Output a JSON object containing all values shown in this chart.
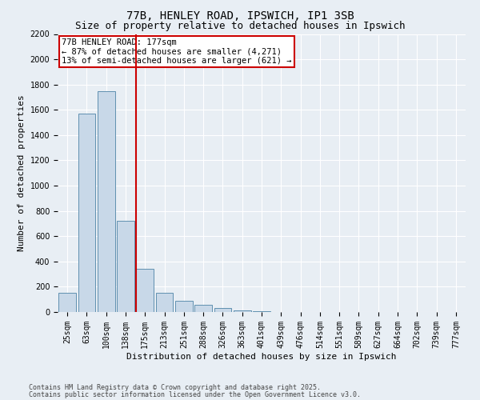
{
  "title1": "77B, HENLEY ROAD, IPSWICH, IP1 3SB",
  "title2": "Size of property relative to detached houses in Ipswich",
  "xlabel": "Distribution of detached houses by size in Ipswich",
  "ylabel": "Number of detached properties",
  "categories": [
    "25sqm",
    "63sqm",
    "100sqm",
    "138sqm",
    "175sqm",
    "213sqm",
    "251sqm",
    "288sqm",
    "326sqm",
    "363sqm",
    "401sqm",
    "439sqm",
    "476sqm",
    "514sqm",
    "551sqm",
    "589sqm",
    "627sqm",
    "664sqm",
    "702sqm",
    "739sqm",
    "777sqm"
  ],
  "values": [
    150,
    1570,
    1750,
    720,
    340,
    155,
    90,
    60,
    30,
    10,
    5,
    0,
    0,
    0,
    0,
    0,
    0,
    0,
    0,
    0,
    0
  ],
  "bar_color": "#c8d8e8",
  "bar_edge_color": "#6090b0",
  "vline_color": "#cc0000",
  "vline_x_index": 4,
  "annotation_text": "77B HENLEY ROAD: 177sqm\n← 87% of detached houses are smaller (4,271)\n13% of semi-detached houses are larger (621) →",
  "annotation_box_color": "#cc0000",
  "ylim": [
    0,
    2200
  ],
  "yticks": [
    0,
    200,
    400,
    600,
    800,
    1000,
    1200,
    1400,
    1600,
    1800,
    2000,
    2200
  ],
  "background_color": "#e8eef4",
  "footer1": "Contains HM Land Registry data © Crown copyright and database right 2025.",
  "footer2": "Contains public sector information licensed under the Open Government Licence v3.0.",
  "title_fontsize": 10,
  "subtitle_fontsize": 9,
  "axis_label_fontsize": 8,
  "tick_fontsize": 7,
  "footer_fontsize": 6,
  "annotation_fontsize": 7.5
}
